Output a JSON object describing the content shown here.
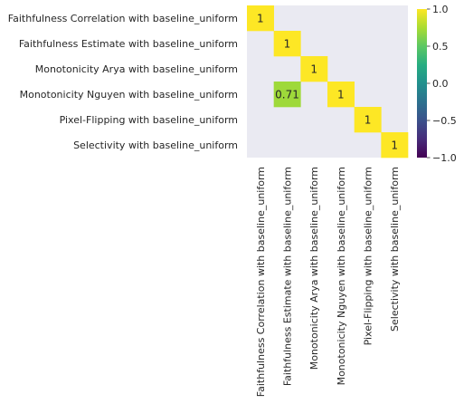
{
  "chart_data": {
    "type": "heatmap",
    "title": "",
    "xlabel": "",
    "ylabel": "",
    "labels": [
      "Faithfulness Correlation with baseline_uniform",
      "Faithfulness Estimate with baseline_uniform",
      "Monotonicity Arya with baseline_uniform",
      "Monotonicity Nguyen with baseline_uniform",
      "Pixel-Flipping with baseline_uniform",
      "Selectivity with baseline_uniform"
    ],
    "matrix": [
      [
        1,
        null,
        null,
        null,
        null,
        null
      ],
      [
        null,
        1,
        null,
        null,
        null,
        null
      ],
      [
        null,
        null,
        1,
        null,
        null,
        null
      ],
      [
        null,
        0.71,
        null,
        1,
        null,
        null
      ],
      [
        null,
        null,
        null,
        null,
        1,
        null
      ],
      [
        null,
        null,
        null,
        null,
        null,
        1
      ]
    ],
    "annotations": [
      [
        "1",
        "",
        "",
        "",
        "",
        ""
      ],
      [
        "",
        "1",
        "",
        "",
        "",
        ""
      ],
      [
        "",
        "",
        "1",
        "",
        "",
        ""
      ],
      [
        "",
        "0.71",
        "",
        "1",
        "",
        ""
      ],
      [
        "",
        "",
        "",
        "",
        "1",
        ""
      ],
      [
        "",
        "",
        "",
        "",
        "",
        "1"
      ]
    ],
    "colorscale": "viridis",
    "vmin": -1,
    "vmax": 1,
    "colorbar_ticks": [
      1.0,
      0.5,
      0.0,
      -0.5,
      -1.0
    ],
    "colorbar_tick_labels": [
      "1.0",
      "0.5",
      "0.0",
      "−0.5",
      "−1.0"
    ],
    "missing_cell_color": "#eaeaf2",
    "grid": false
  }
}
